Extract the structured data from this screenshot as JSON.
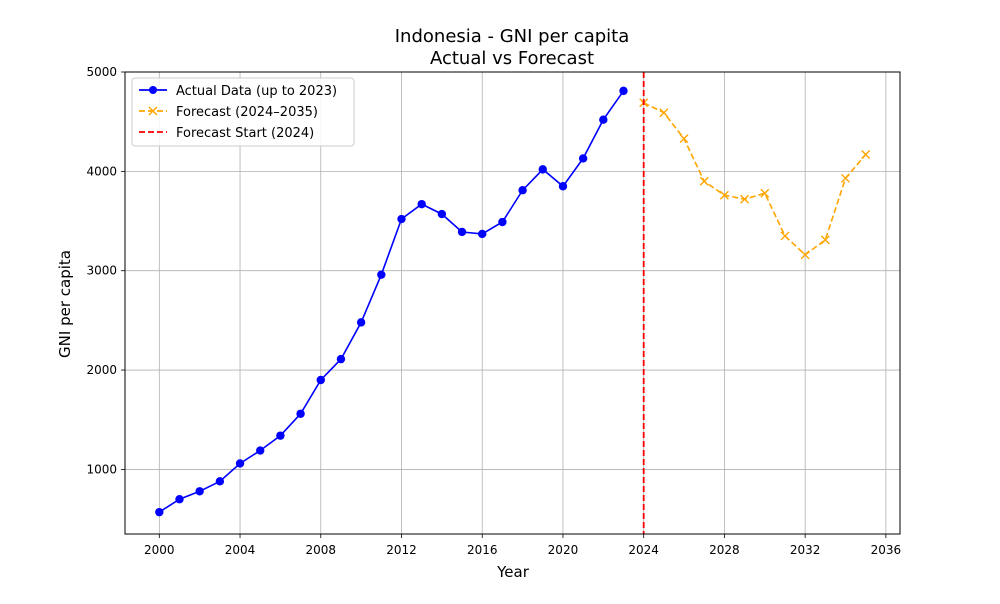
{
  "chart_data": {
    "type": "line",
    "title": "Indonesia - GNI per capita",
    "subtitle": "Actual vs Forecast",
    "xlabel": "Year",
    "ylabel": "GNI per capita",
    "xlim": [
      1998.3,
      2036.7
    ],
    "ylim": [
      350,
      5000
    ],
    "xticks": [
      2000,
      2004,
      2008,
      2012,
      2016,
      2020,
      2024,
      2028,
      2032,
      2036
    ],
    "yticks": [
      1000,
      2000,
      3000,
      4000,
      5000
    ],
    "grid": true,
    "legend_position": "top-left",
    "series": [
      {
        "name": "Actual Data (up to 2023)",
        "color": "#0000ff",
        "style": "solid",
        "marker": "circle",
        "x": [
          2000,
          2001,
          2002,
          2003,
          2004,
          2005,
          2006,
          2007,
          2008,
          2009,
          2010,
          2011,
          2012,
          2013,
          2014,
          2015,
          2016,
          2017,
          2018,
          2019,
          2020,
          2021,
          2022,
          2023
        ],
        "y": [
          570,
          700,
          780,
          880,
          1060,
          1190,
          1340,
          1560,
          1900,
          2110,
          2480,
          2960,
          3520,
          3670,
          3570,
          3390,
          3370,
          3490,
          3810,
          4020,
          3850,
          4130,
          4520,
          4810
        ]
      },
      {
        "name": "Forecast (2024–2035)",
        "color": "#ffa500",
        "style": "dashed",
        "marker": "x",
        "x": [
          2024,
          2025,
          2026,
          2027,
          2028,
          2029,
          2030,
          2031,
          2032,
          2033,
          2034,
          2035
        ],
        "y": [
          4690,
          4590,
          4330,
          3900,
          3760,
          3720,
          3780,
          3350,
          3160,
          3310,
          3930,
          4170
        ]
      }
    ],
    "vlines": [
      {
        "name": "Forecast Start (2024)",
        "x": 2024,
        "color": "#ff0000",
        "style": "dashed"
      }
    ]
  }
}
